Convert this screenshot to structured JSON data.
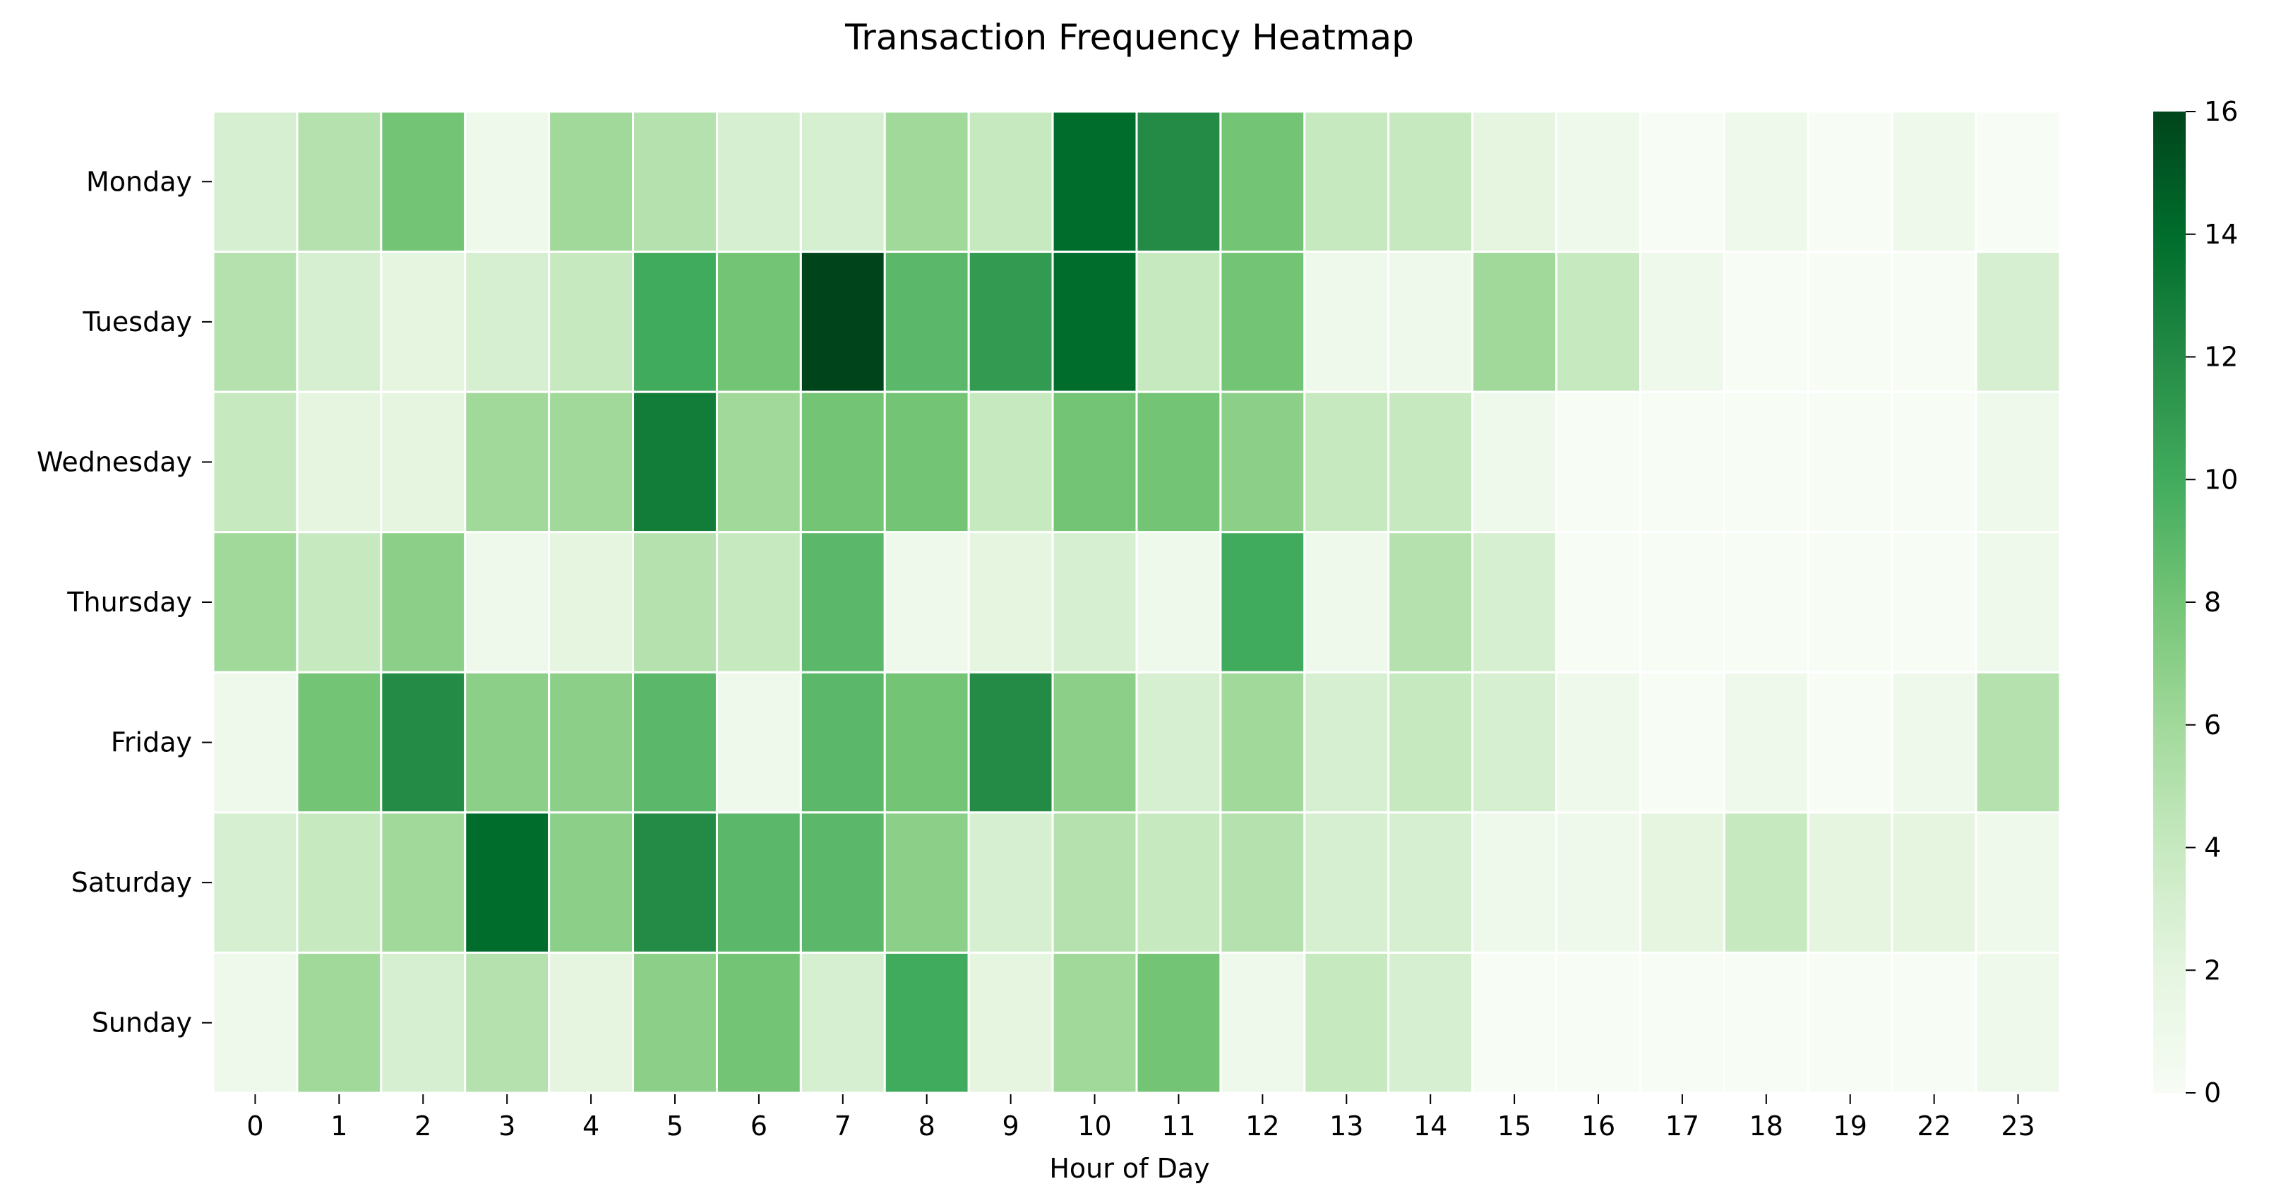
{
  "chart_data": {
    "type": "heatmap",
    "title": "Transaction Frequency Heatmap",
    "xlabel": "Hour of Day",
    "ylabel": "",
    "x_categories": [
      "0",
      "1",
      "2",
      "3",
      "4",
      "5",
      "6",
      "7",
      "8",
      "9",
      "10",
      "11",
      "12",
      "13",
      "14",
      "15",
      "16",
      "17",
      "18",
      "19",
      "22",
      "23"
    ],
    "y_categories": [
      "Monday",
      "Tuesday",
      "Wednesday",
      "Thursday",
      "Friday",
      "Saturday",
      "Sunday"
    ],
    "values": [
      [
        3,
        5,
        8,
        1,
        6,
        5,
        3,
        3,
        6,
        4,
        14,
        12,
        8,
        4,
        4,
        2,
        1,
        0,
        1,
        0,
        1,
        0
      ],
      [
        5,
        3,
        2,
        3,
        4,
        10,
        8,
        16,
        9,
        11,
        14,
        4,
        8,
        1,
        1,
        6,
        4,
        1,
        0,
        0,
        0,
        3
      ],
      [
        4,
        2,
        2,
        6,
        6,
        13,
        6,
        8,
        8,
        4,
        8,
        8,
        7,
        4,
        4,
        1,
        0,
        0,
        0,
        0,
        0,
        1
      ],
      [
        6,
        4,
        7,
        1,
        2,
        5,
        4,
        9,
        1,
        2,
        3,
        1,
        10,
        1,
        5,
        3,
        0,
        0,
        0,
        0,
        0,
        1
      ],
      [
        1,
        8,
        12,
        7,
        7,
        9,
        1,
        9,
        8,
        12,
        7,
        3,
        6,
        3,
        4,
        3,
        1,
        0,
        1,
        0,
        1,
        5
      ],
      [
        3,
        4,
        6,
        14,
        7,
        12,
        9,
        9,
        7,
        3,
        5,
        4,
        5,
        3,
        3,
        1,
        1,
        2,
        4,
        2,
        2,
        1
      ],
      [
        1,
        6,
        3,
        5,
        2,
        7,
        8,
        3,
        10,
        2,
        6,
        8,
        1,
        4,
        3,
        0,
        0,
        0,
        0,
        0,
        0,
        1
      ]
    ],
    "colorbar": {
      "min": 0,
      "max": 16,
      "ticks": [
        "0",
        "2",
        "4",
        "6",
        "8",
        "10",
        "12",
        "14",
        "16"
      ],
      "colormap": "Greens",
      "low_color": "#f7fcf5",
      "high_color": "#00441b"
    },
    "grid": false,
    "cell_separator_color": "#ffffff"
  }
}
